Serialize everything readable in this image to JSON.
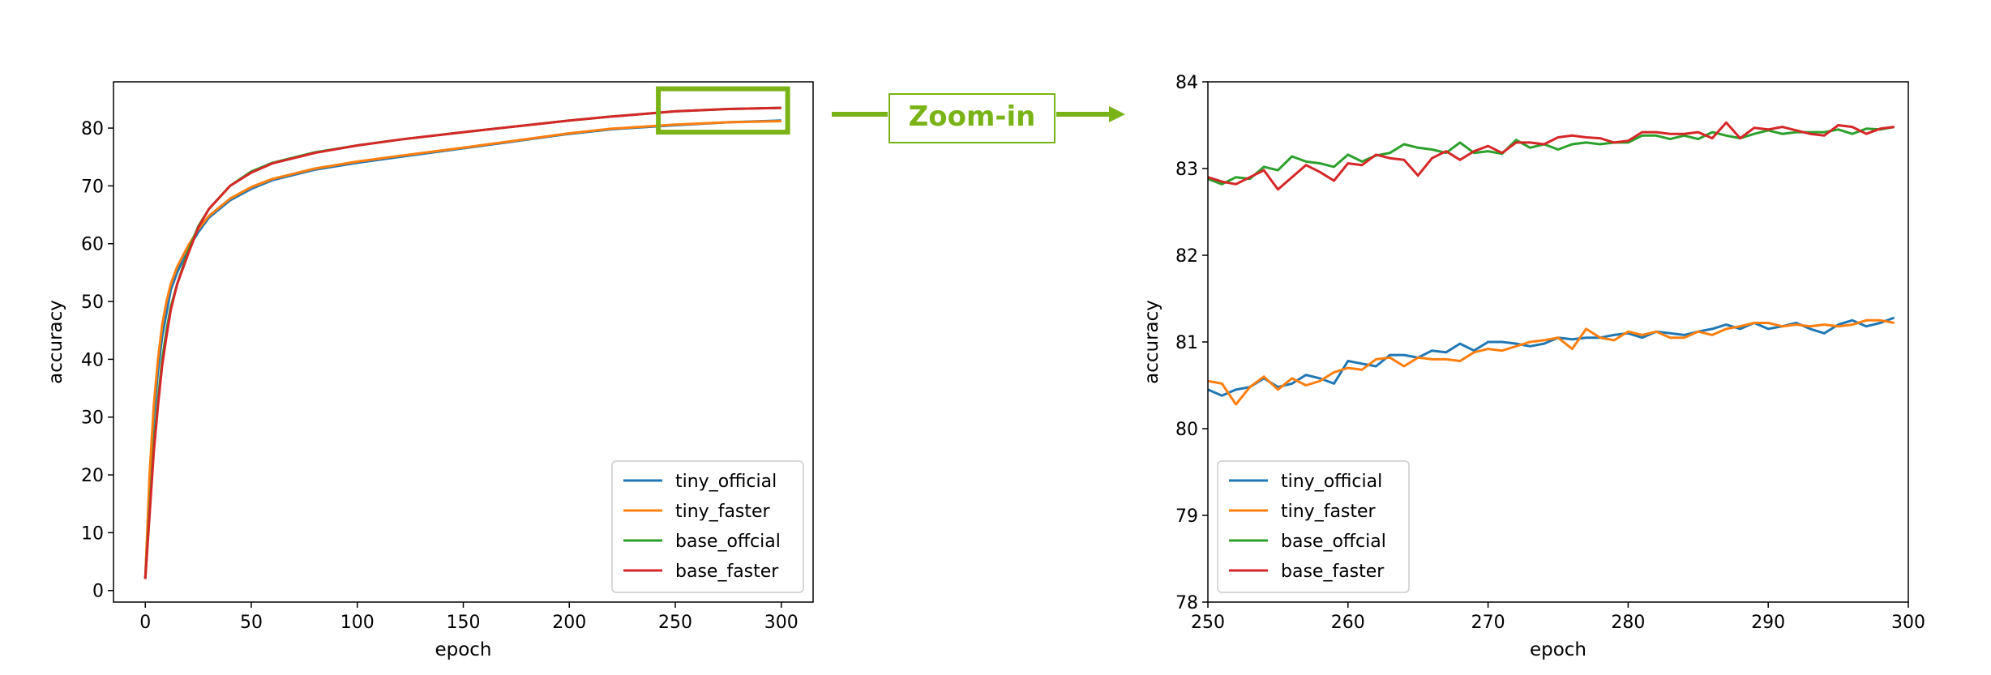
{
  "annotation": {
    "zoom_label": "Zoom-in"
  },
  "colors": {
    "tiny_official": "#1f77b4",
    "tiny_faster": "#ff7f0e",
    "base_offcial": "#2ca02c",
    "base_faster": "#d62728",
    "accent": "#7ab317"
  },
  "chart_data": [
    {
      "type": "line",
      "xlabel": "epoch",
      "ylabel": "accuracy",
      "xlim": [
        -15,
        315
      ],
      "ylim": [
        -2,
        88
      ],
      "xticks": [
        0,
        50,
        100,
        150,
        200,
        250,
        300
      ],
      "yticks": [
        0,
        10,
        20,
        30,
        40,
        50,
        60,
        70,
        80
      ],
      "legend": "bottom-right",
      "highlight_box": {
        "x": [
          242,
          303
        ],
        "y": [
          79.3,
          86.8
        ]
      },
      "series": [
        {
          "name": "tiny_official",
          "color": "#1f77b4",
          "x": [
            0,
            2,
            4,
            6,
            8,
            10,
            12,
            15,
            20,
            25,
            30,
            40,
            50,
            60,
            80,
            100,
            120,
            150,
            180,
            200,
            220,
            250,
            275,
            300
          ],
          "y": [
            2,
            18,
            30,
            38,
            44,
            48,
            52,
            55,
            59,
            62,
            64.5,
            67.5,
            69.5,
            71,
            72.8,
            74,
            75,
            76.5,
            78,
            79,
            79.8,
            80.5,
            81,
            81.3
          ]
        },
        {
          "name": "tiny_faster",
          "color": "#ff7f0e",
          "x": [
            0,
            2,
            4,
            6,
            8,
            10,
            12,
            15,
            20,
            25,
            30,
            40,
            50,
            60,
            80,
            100,
            120,
            150,
            180,
            200,
            220,
            250,
            275,
            300
          ],
          "y": [
            2,
            20,
            32,
            40,
            46,
            50,
            53,
            56,
            59.5,
            62.5,
            64.8,
            67.8,
            69.8,
            71.2,
            73,
            74.2,
            75.2,
            76.6,
            78.1,
            79.1,
            79.9,
            80.6,
            81,
            81.2
          ]
        },
        {
          "name": "base_offcial",
          "color": "#2ca02c",
          "x": [
            0,
            2,
            4,
            6,
            8,
            10,
            12,
            15,
            20,
            25,
            30,
            40,
            50,
            60,
            80,
            100,
            120,
            150,
            180,
            200,
            220,
            250,
            275,
            300
          ],
          "y": [
            2,
            14,
            25,
            33,
            40,
            45,
            49,
            53,
            58.5,
            63,
            66,
            70,
            72.5,
            74,
            75.8,
            77,
            78,
            79.3,
            80.5,
            81.3,
            82,
            82.9,
            83.3,
            83.5
          ]
        },
        {
          "name": "base_faster",
          "color": "#d62728",
          "x": [
            0,
            2,
            4,
            6,
            8,
            10,
            12,
            15,
            20,
            25,
            30,
            40,
            50,
            60,
            80,
            100,
            120,
            150,
            180,
            200,
            220,
            250,
            275,
            300
          ],
          "y": [
            2,
            13,
            24,
            32,
            39,
            44,
            48.5,
            53,
            58,
            62.8,
            66,
            70,
            72.3,
            73.9,
            75.7,
            77,
            78,
            79.3,
            80.5,
            81.3,
            82,
            82.9,
            83.3,
            83.5
          ]
        }
      ]
    },
    {
      "type": "line",
      "xlabel": "epoch",
      "ylabel": "accuracy",
      "xlim": [
        250,
        300
      ],
      "ylim": [
        78,
        84
      ],
      "xticks": [
        250,
        260,
        270,
        280,
        290,
        300
      ],
      "yticks": [
        78,
        79,
        80,
        81,
        82,
        83,
        84
      ],
      "legend": "bottom-left",
      "series": [
        {
          "name": "tiny_official",
          "color": "#1f77b4",
          "x": [
            250,
            251,
            252,
            253,
            254,
            255,
            256,
            257,
            258,
            259,
            260,
            261,
            262,
            263,
            264,
            265,
            266,
            267,
            268,
            269,
            270,
            271,
            272,
            273,
            274,
            275,
            276,
            277,
            278,
            279,
            280,
            281,
            282,
            283,
            284,
            285,
            286,
            287,
            288,
            289,
            290,
            291,
            292,
            293,
            294,
            295,
            296,
            297,
            298,
            299
          ],
          "y": [
            80.45,
            80.38,
            80.45,
            80.48,
            80.58,
            80.48,
            80.52,
            80.62,
            80.58,
            80.52,
            80.78,
            80.75,
            80.72,
            80.85,
            80.85,
            80.82,
            80.9,
            80.88,
            80.98,
            80.9,
            81.0,
            81.0,
            80.98,
            80.95,
            80.98,
            81.05,
            81.03,
            81.05,
            81.05,
            81.08,
            81.1,
            81.05,
            81.12,
            81.1,
            81.08,
            81.12,
            81.15,
            81.2,
            81.15,
            81.22,
            81.15,
            81.18,
            81.22,
            81.15,
            81.1,
            81.2,
            81.25,
            81.18,
            81.22,
            81.28
          ]
        },
        {
          "name": "tiny_faster",
          "color": "#ff7f0e",
          "x": [
            250,
            251,
            252,
            253,
            254,
            255,
            256,
            257,
            258,
            259,
            260,
            261,
            262,
            263,
            264,
            265,
            266,
            267,
            268,
            269,
            270,
            271,
            272,
            273,
            274,
            275,
            276,
            277,
            278,
            279,
            280,
            281,
            282,
            283,
            284,
            285,
            286,
            287,
            288,
            289,
            290,
            291,
            292,
            293,
            294,
            295,
            296,
            297,
            298,
            299
          ],
          "y": [
            80.55,
            80.52,
            80.28,
            80.48,
            80.6,
            80.45,
            80.58,
            80.5,
            80.55,
            80.65,
            80.7,
            80.68,
            80.8,
            80.82,
            80.72,
            80.82,
            80.8,
            80.8,
            80.78,
            80.88,
            80.92,
            80.9,
            80.95,
            81.0,
            81.02,
            81.05,
            80.92,
            81.15,
            81.05,
            81.02,
            81.12,
            81.08,
            81.12,
            81.05,
            81.05,
            81.12,
            81.08,
            81.15,
            81.18,
            81.22,
            81.22,
            81.18,
            81.2,
            81.18,
            81.2,
            81.18,
            81.2,
            81.25,
            81.25,
            81.22
          ]
        },
        {
          "name": "base_offcial",
          "color": "#2ca02c",
          "x": [
            250,
            251,
            252,
            253,
            254,
            255,
            256,
            257,
            258,
            259,
            260,
            261,
            262,
            263,
            264,
            265,
            266,
            267,
            268,
            269,
            270,
            271,
            272,
            273,
            274,
            275,
            276,
            277,
            278,
            279,
            280,
            281,
            282,
            283,
            284,
            285,
            286,
            287,
            288,
            289,
            290,
            291,
            292,
            293,
            294,
            295,
            296,
            297,
            298,
            299
          ],
          "y": [
            82.88,
            82.82,
            82.9,
            82.88,
            83.02,
            82.98,
            83.14,
            83.08,
            83.06,
            83.02,
            83.16,
            83.08,
            83.15,
            83.18,
            83.28,
            83.24,
            83.22,
            83.18,
            83.3,
            83.18,
            83.2,
            83.17,
            83.33,
            83.24,
            83.28,
            83.22,
            83.28,
            83.3,
            83.28,
            83.3,
            83.3,
            83.38,
            83.38,
            83.34,
            83.38,
            83.34,
            83.42,
            83.38,
            83.35,
            83.4,
            83.44,
            83.4,
            83.42,
            83.42,
            83.42,
            83.45,
            83.4,
            83.46,
            83.45,
            83.48
          ]
        },
        {
          "name": "base_faster",
          "color": "#d62728",
          "x": [
            250,
            251,
            252,
            253,
            254,
            255,
            256,
            257,
            258,
            259,
            260,
            261,
            262,
            263,
            264,
            265,
            266,
            267,
            268,
            269,
            270,
            271,
            272,
            273,
            274,
            275,
            276,
            277,
            278,
            279,
            280,
            281,
            282,
            283,
            284,
            285,
            286,
            287,
            288,
            289,
            290,
            291,
            292,
            293,
            294,
            295,
            296,
            297,
            298,
            299
          ],
          "y": [
            82.9,
            82.85,
            82.82,
            82.9,
            82.98,
            82.76,
            82.9,
            83.04,
            82.96,
            82.86,
            83.06,
            83.04,
            83.16,
            83.12,
            83.1,
            82.92,
            83.12,
            83.2,
            83.1,
            83.2,
            83.26,
            83.18,
            83.3,
            83.3,
            83.28,
            83.36,
            83.38,
            83.36,
            83.35,
            83.3,
            83.32,
            83.42,
            83.42,
            83.4,
            83.4,
            83.42,
            83.35,
            83.53,
            83.35,
            83.47,
            83.45,
            83.48,
            83.44,
            83.4,
            83.38,
            83.5,
            83.48,
            83.4,
            83.46,
            83.48
          ]
        }
      ]
    }
  ]
}
